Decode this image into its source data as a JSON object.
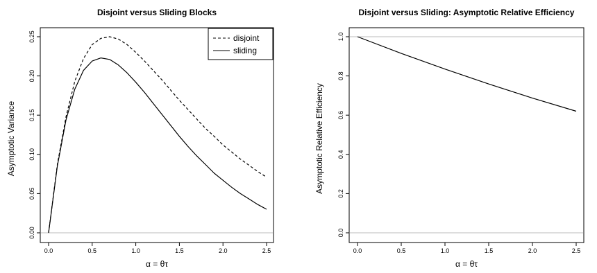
{
  "chart_data": [
    {
      "type": "line",
      "title": "Disjoint versus Sliding Blocks",
      "xlabel": "α = θτ",
      "ylabel": "Asymptotic Variance",
      "xlim": [
        0,
        2.5
      ],
      "ylim": [
        0,
        0.25
      ],
      "xticks": [
        "0.0",
        "0.5",
        "1.0",
        "1.5",
        "2.0",
        "2.5"
      ],
      "yticks": [
        "0.00",
        "0.05",
        "0.10",
        "0.15",
        "0.20",
        "0.25"
      ],
      "reference_lines": [
        0
      ],
      "legend": {
        "placement": "top-right",
        "entries": [
          "disjoint",
          "sliding"
        ]
      },
      "x": [
        0.0,
        0.1,
        0.2,
        0.3,
        0.4,
        0.5,
        0.6,
        0.7,
        0.8,
        0.9,
        1.0,
        1.1,
        1.2,
        1.3,
        1.4,
        1.5,
        1.6,
        1.7,
        1.8,
        1.9,
        2.0,
        2.1,
        2.2,
        2.3,
        2.4,
        2.5
      ],
      "series": [
        {
          "name": "disjoint",
          "style": "dashed",
          "values": [
            0.0,
            0.087,
            0.148,
            0.193,
            0.222,
            0.24,
            0.248,
            0.25,
            0.247,
            0.24,
            0.23,
            0.219,
            0.207,
            0.195,
            0.182,
            0.169,
            0.157,
            0.145,
            0.133,
            0.123,
            0.112,
            0.103,
            0.094,
            0.086,
            0.078,
            0.071
          ]
        },
        {
          "name": "sliding",
          "style": "solid",
          "values": [
            0.0,
            0.085,
            0.144,
            0.183,
            0.207,
            0.219,
            0.223,
            0.221,
            0.214,
            0.204,
            0.192,
            0.179,
            0.165,
            0.151,
            0.137,
            0.123,
            0.11,
            0.098,
            0.087,
            0.076,
            0.067,
            0.058,
            0.05,
            0.043,
            0.036,
            0.03
          ]
        }
      ]
    },
    {
      "type": "line",
      "title": "Disjoint versus Sliding: Asymptotic Relative Efficiency",
      "xlabel": "α = θτ",
      "ylabel": "Asymptotic Relative Efficiency",
      "xlim": [
        0,
        2.5
      ],
      "ylim": [
        0,
        1.0
      ],
      "xticks": [
        "0.0",
        "0.5",
        "1.0",
        "1.5",
        "2.0",
        "2.5"
      ],
      "yticks": [
        "0.0",
        "0.2",
        "0.4",
        "0.6",
        "0.8",
        "1.0"
      ],
      "reference_lines": [
        0,
        1
      ],
      "x": [
        0.0,
        0.5,
        1.0,
        1.5,
        2.0,
        2.5
      ],
      "series": [
        {
          "style": "solid",
          "values": [
            1.0,
            0.915,
            0.835,
            0.759,
            0.687,
            0.62
          ]
        }
      ]
    }
  ]
}
